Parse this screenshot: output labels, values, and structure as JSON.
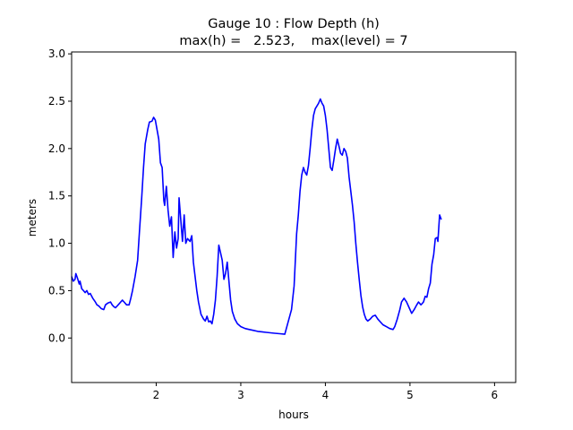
{
  "chart_data": {
    "type": "line",
    "title": "Gauge 10 : Flow Depth (h)",
    "subtitle": "max(h) =   2.523,    max(level) = 7",
    "xlabel": "hours",
    "ylabel": "meters",
    "xlim": [
      1.0,
      6.25
    ],
    "ylim": [
      -0.47,
      3.02
    ],
    "xticks": [
      2,
      3,
      4,
      5,
      6
    ],
    "xtick_labels": [
      "2",
      "3",
      "4",
      "5",
      "6"
    ],
    "yticks": [
      0.0,
      0.5,
      1.0,
      1.5,
      2.0,
      2.5,
      3.0
    ],
    "ytick_labels": [
      "0.0",
      "0.5",
      "1.0",
      "1.5",
      "2.0",
      "2.5",
      "3.0"
    ],
    "grid": false,
    "series": [
      {
        "color": "#0000ff",
        "points": [
          [
            1.0,
            0.65
          ],
          [
            1.02,
            0.6
          ],
          [
            1.04,
            0.62
          ],
          [
            1.05,
            0.68
          ],
          [
            1.07,
            0.63
          ],
          [
            1.09,
            0.57
          ],
          [
            1.1,
            0.6
          ],
          [
            1.12,
            0.52
          ],
          [
            1.14,
            0.5
          ],
          [
            1.16,
            0.48
          ],
          [
            1.18,
            0.5
          ],
          [
            1.2,
            0.46
          ],
          [
            1.22,
            0.47
          ],
          [
            1.25,
            0.42
          ],
          [
            1.28,
            0.38
          ],
          [
            1.3,
            0.35
          ],
          [
            1.32,
            0.34
          ],
          [
            1.35,
            0.31
          ],
          [
            1.38,
            0.3
          ],
          [
            1.4,
            0.35
          ],
          [
            1.43,
            0.37
          ],
          [
            1.46,
            0.38
          ],
          [
            1.48,
            0.35
          ],
          [
            1.5,
            0.33
          ],
          [
            1.52,
            0.32
          ],
          [
            1.55,
            0.35
          ],
          [
            1.58,
            0.38
          ],
          [
            1.6,
            0.4
          ],
          [
            1.62,
            0.38
          ],
          [
            1.65,
            0.35
          ],
          [
            1.68,
            0.35
          ],
          [
            1.7,
            0.42
          ],
          [
            1.72,
            0.5
          ],
          [
            1.75,
            0.65
          ],
          [
            1.78,
            0.82
          ],
          [
            1.8,
            1.1
          ],
          [
            1.83,
            1.5
          ],
          [
            1.85,
            1.8
          ],
          [
            1.87,
            2.05
          ],
          [
            1.9,
            2.2
          ],
          [
            1.92,
            2.28
          ],
          [
            1.95,
            2.29
          ],
          [
            1.97,
            2.33
          ],
          [
            1.99,
            2.3
          ],
          [
            2.01,
            2.2
          ],
          [
            2.03,
            2.1
          ],
          [
            2.05,
            1.85
          ],
          [
            2.07,
            1.8
          ],
          [
            2.09,
            1.45
          ],
          [
            2.1,
            1.4
          ],
          [
            2.12,
            1.6
          ],
          [
            2.14,
            1.35
          ],
          [
            2.16,
            1.18
          ],
          [
            2.18,
            1.28
          ],
          [
            2.2,
            0.85
          ],
          [
            2.22,
            1.12
          ],
          [
            2.24,
            0.95
          ],
          [
            2.26,
            1.05
          ],
          [
            2.27,
            1.48
          ],
          [
            2.29,
            1.25
          ],
          [
            2.31,
            1.02
          ],
          [
            2.33,
            1.3
          ],
          [
            2.35,
            1.0
          ],
          [
            2.37,
            1.05
          ],
          [
            2.4,
            1.02
          ],
          [
            2.42,
            1.08
          ],
          [
            2.44,
            0.8
          ],
          [
            2.46,
            0.65
          ],
          [
            2.48,
            0.5
          ],
          [
            2.5,
            0.38
          ],
          [
            2.53,
            0.25
          ],
          [
            2.56,
            0.2
          ],
          [
            2.58,
            0.18
          ],
          [
            2.6,
            0.23
          ],
          [
            2.62,
            0.17
          ],
          [
            2.64,
            0.18
          ],
          [
            2.66,
            0.15
          ],
          [
            2.68,
            0.25
          ],
          [
            2.7,
            0.4
          ],
          [
            2.72,
            0.65
          ],
          [
            2.74,
            0.98
          ],
          [
            2.76,
            0.9
          ],
          [
            2.78,
            0.82
          ],
          [
            2.8,
            0.62
          ],
          [
            2.82,
            0.68
          ],
          [
            2.84,
            0.8
          ],
          [
            2.86,
            0.6
          ],
          [
            2.88,
            0.4
          ],
          [
            2.9,
            0.28
          ],
          [
            2.93,
            0.2
          ],
          [
            2.96,
            0.15
          ],
          [
            3.0,
            0.12
          ],
          [
            3.05,
            0.1
          ],
          [
            3.1,
            0.09
          ],
          [
            3.15,
            0.08
          ],
          [
            3.2,
            0.07
          ],
          [
            3.25,
            0.065
          ],
          [
            3.3,
            0.06
          ],
          [
            3.35,
            0.055
          ],
          [
            3.4,
            0.05
          ],
          [
            3.46,
            0.045
          ],
          [
            3.52,
            0.04
          ],
          [
            3.6,
            0.3
          ],
          [
            3.63,
            0.55
          ],
          [
            3.66,
            1.1
          ],
          [
            3.68,
            1.3
          ],
          [
            3.7,
            1.55
          ],
          [
            3.72,
            1.72
          ],
          [
            3.74,
            1.8
          ],
          [
            3.76,
            1.75
          ],
          [
            3.78,
            1.72
          ],
          [
            3.8,
            1.82
          ],
          [
            3.82,
            2.0
          ],
          [
            3.84,
            2.2
          ],
          [
            3.86,
            2.35
          ],
          [
            3.88,
            2.42
          ],
          [
            3.9,
            2.45
          ],
          [
            3.92,
            2.48
          ],
          [
            3.94,
            2.523
          ],
          [
            3.96,
            2.48
          ],
          [
            3.98,
            2.45
          ],
          [
            4.0,
            2.35
          ],
          [
            4.02,
            2.2
          ],
          [
            4.04,
            2.0
          ],
          [
            4.06,
            1.8
          ],
          [
            4.08,
            1.77
          ],
          [
            4.1,
            1.88
          ],
          [
            4.12,
            2.0
          ],
          [
            4.14,
            2.1
          ],
          [
            4.16,
            2.03
          ],
          [
            4.18,
            1.95
          ],
          [
            4.2,
            1.93
          ],
          [
            4.22,
            2.0
          ],
          [
            4.24,
            1.97
          ],
          [
            4.26,
            1.9
          ],
          [
            4.28,
            1.7
          ],
          [
            4.3,
            1.55
          ],
          [
            4.32,
            1.4
          ],
          [
            4.34,
            1.22
          ],
          [
            4.36,
            1.0
          ],
          [
            4.38,
            0.8
          ],
          [
            4.4,
            0.62
          ],
          [
            4.42,
            0.45
          ],
          [
            4.44,
            0.33
          ],
          [
            4.46,
            0.25
          ],
          [
            4.48,
            0.2
          ],
          [
            4.5,
            0.18
          ],
          [
            4.53,
            0.2
          ],
          [
            4.56,
            0.23
          ],
          [
            4.59,
            0.24
          ],
          [
            4.62,
            0.2
          ],
          [
            4.65,
            0.17
          ],
          [
            4.68,
            0.14
          ],
          [
            4.72,
            0.12
          ],
          [
            4.76,
            0.1
          ],
          [
            4.8,
            0.09
          ],
          [
            4.82,
            0.12
          ],
          [
            4.85,
            0.2
          ],
          [
            4.88,
            0.3
          ],
          [
            4.9,
            0.38
          ],
          [
            4.93,
            0.42
          ],
          [
            4.96,
            0.38
          ],
          [
            4.99,
            0.32
          ],
          [
            5.02,
            0.26
          ],
          [
            5.05,
            0.3
          ],
          [
            5.08,
            0.35
          ],
          [
            5.1,
            0.38
          ],
          [
            5.13,
            0.35
          ],
          [
            5.16,
            0.38
          ],
          [
            5.18,
            0.44
          ],
          [
            5.2,
            0.43
          ],
          [
            5.22,
            0.52
          ],
          [
            5.24,
            0.58
          ],
          [
            5.26,
            0.78
          ],
          [
            5.28,
            0.88
          ],
          [
            5.3,
            1.05
          ],
          [
            5.32,
            1.06
          ],
          [
            5.33,
            1.02
          ],
          [
            5.35,
            1.3
          ],
          [
            5.37,
            1.25
          ]
        ]
      }
    ]
  }
}
